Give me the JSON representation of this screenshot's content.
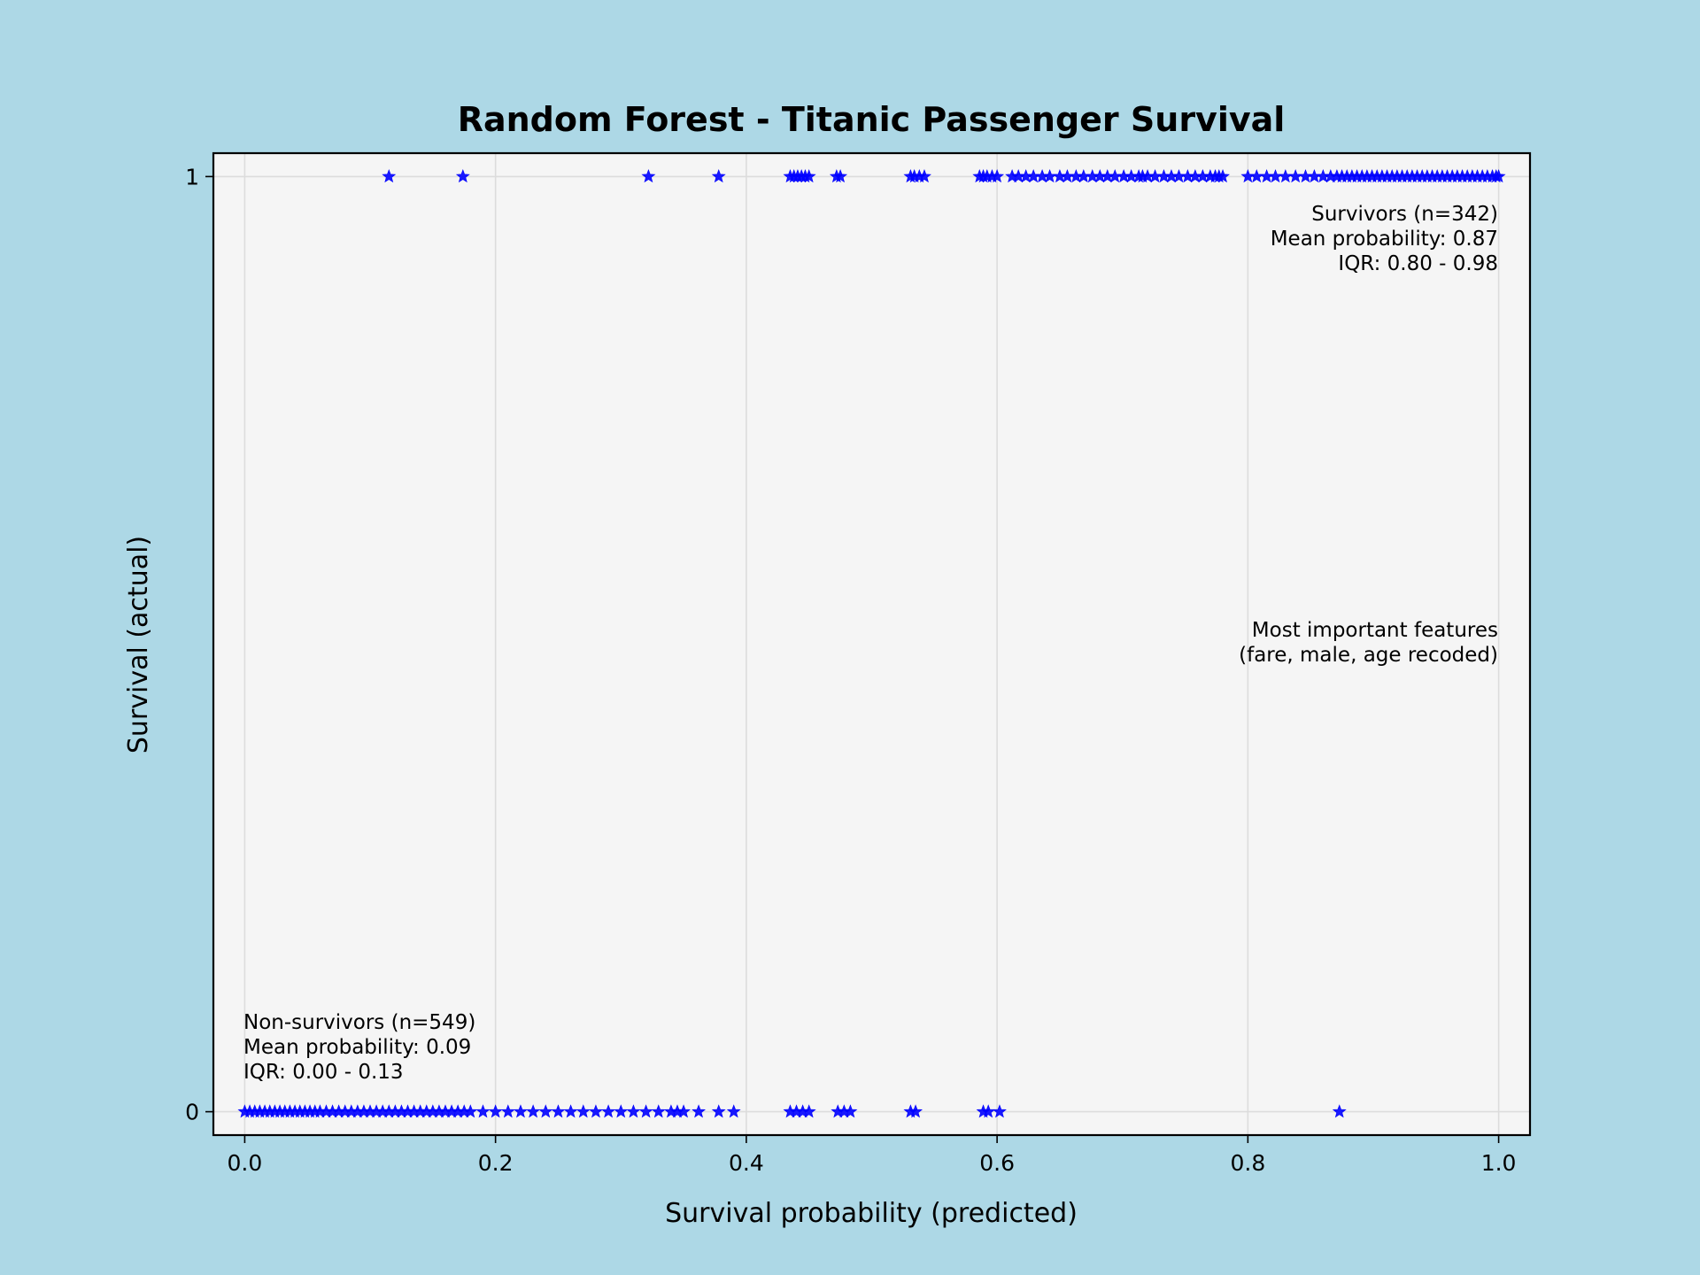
{
  "chart_data": {
    "type": "scatter",
    "title": "Random Forest - Titanic Passenger Survival",
    "xlabel": "Survival probability (predicted)",
    "ylabel": "Survival (actual)",
    "xlim": [
      -0.025,
      1.025
    ],
    "ylim": [
      -0.025,
      1.025
    ],
    "x_ticks": [
      "0.0",
      "0.2",
      "0.4",
      "0.6",
      "0.8",
      "1.0"
    ],
    "x_tick_values": [
      0.0,
      0.2,
      0.4,
      0.6,
      0.8,
      1.0
    ],
    "y_ticks": [
      "0",
      "1"
    ],
    "y_tick_values": [
      0,
      1
    ],
    "grid": true,
    "marker": "star",
    "marker_color": "#0000ff",
    "plot_background": "#f5f5f5",
    "figure_background": "#add8e6",
    "annotations": {
      "survivors": [
        "Survivors (n=342)",
        "Mean probability: 0.87",
        "IQR: 0.80 - 0.98"
      ],
      "features": [
        "Most important features",
        "(fare, male, age recoded)"
      ],
      "non_survivors": [
        "Non-survivors (n=549)",
        "Mean probability: 0.09",
        "IQR: 0.00 - 0.13"
      ]
    },
    "series": [
      {
        "y": 1,
        "x": [
          0.115,
          0.174,
          0.322,
          0.378,
          0.435,
          0.438,
          0.441,
          0.444,
          0.447,
          0.45,
          0.472,
          0.475,
          0.531,
          0.534,
          0.538,
          0.542,
          0.586,
          0.589,
          0.592,
          0.596,
          0.6,
          0.612,
          0.617,
          0.623,
          0.629,
          0.636,
          0.642,
          0.65,
          0.656,
          0.663,
          0.669,
          0.676,
          0.682,
          0.688,
          0.694,
          0.701,
          0.707,
          0.713,
          0.716,
          0.72,
          0.726,
          0.733,
          0.739,
          0.745,
          0.752,
          0.758,
          0.764,
          0.77,
          0.774,
          0.777,
          0.78,
          0.8,
          0.807,
          0.815,
          0.822,
          0.83,
          0.838,
          0.846,
          0.853,
          0.86,
          0.866,
          0.871,
          0.875,
          0.879,
          0.883,
          0.887,
          0.891,
          0.895,
          0.899,
          0.903,
          0.907,
          0.911,
          0.915,
          0.919,
          0.923,
          0.927,
          0.931,
          0.935,
          0.939,
          0.943,
          0.947,
          0.951,
          0.955,
          0.959,
          0.963,
          0.967,
          0.971,
          0.975,
          0.979,
          0.983,
          0.987,
          0.991,
          0.995,
          0.998,
          1.0
        ]
      },
      {
        "y": 0,
        "x": [
          0.0,
          0.004,
          0.008,
          0.012,
          0.016,
          0.02,
          0.024,
          0.028,
          0.032,
          0.036,
          0.04,
          0.044,
          0.048,
          0.052,
          0.056,
          0.06,
          0.065,
          0.07,
          0.075,
          0.08,
          0.085,
          0.09,
          0.095,
          0.1,
          0.105,
          0.11,
          0.115,
          0.12,
          0.125,
          0.13,
          0.135,
          0.14,
          0.145,
          0.15,
          0.155,
          0.16,
          0.165,
          0.17,
          0.175,
          0.18,
          0.19,
          0.2,
          0.21,
          0.22,
          0.23,
          0.24,
          0.25,
          0.26,
          0.27,
          0.28,
          0.29,
          0.3,
          0.31,
          0.32,
          0.33,
          0.34,
          0.345,
          0.35,
          0.362,
          0.378,
          0.39,
          0.435,
          0.44,
          0.445,
          0.45,
          0.473,
          0.478,
          0.483,
          0.531,
          0.535,
          0.589,
          0.593,
          0.602,
          0.873
        ]
      }
    ]
  }
}
